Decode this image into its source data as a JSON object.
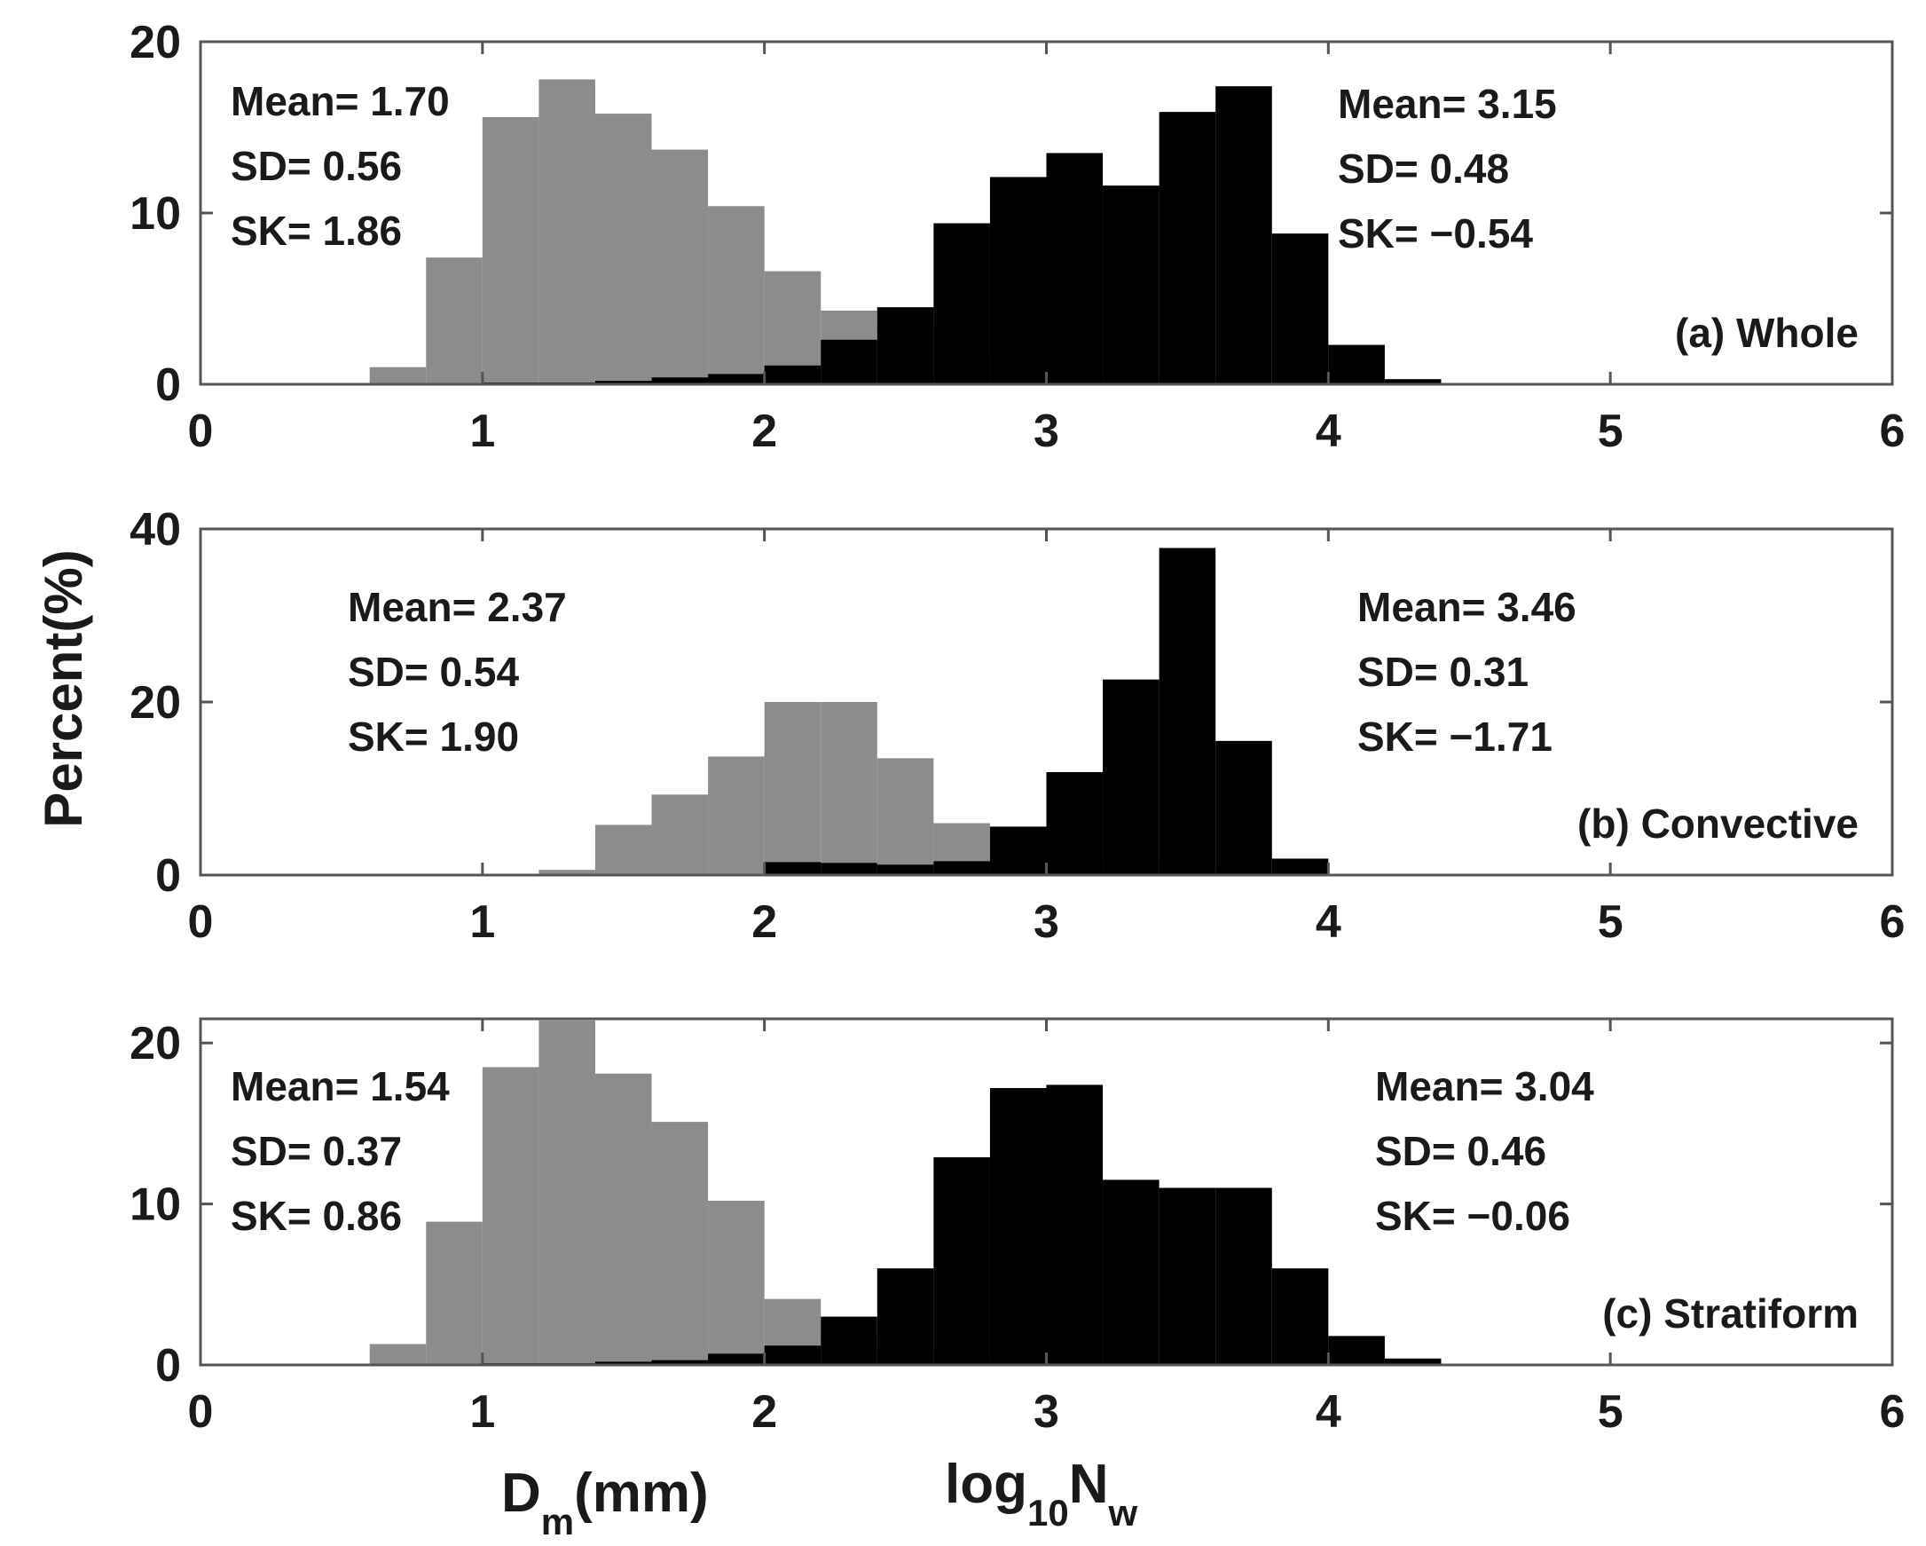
{
  "ylabel": "Percent(%)",
  "xlabel_dm": {
    "main": "D",
    "sub": "m",
    "rest": "(mm)"
  },
  "xlabel_nw": {
    "main": "log",
    "sub": "10",
    "rest": "N",
    "sub2": "w"
  },
  "colors": {
    "dm": "#8c8c8c",
    "nw": "#000000",
    "axis": "#555555"
  },
  "chart_data": [
    {
      "type": "bar",
      "title": "(a) Whole",
      "ylim": [
        0,
        20
      ],
      "yticks": [
        "0",
        "10",
        "20"
      ],
      "xlim": [
        0,
        6
      ],
      "xticks": [
        "0",
        "1",
        "2",
        "3",
        "4",
        "5",
        "6"
      ],
      "bin_width": 0.2,
      "series": [
        {
          "name": "Dm",
          "color": "#8c8c8c",
          "bins": [
            [
              0.7,
              1.0
            ],
            [
              0.9,
              7.4
            ],
            [
              1.1,
              15.6
            ],
            [
              1.3,
              17.8
            ],
            [
              1.5,
              15.8
            ],
            [
              1.7,
              13.7
            ],
            [
              1.9,
              10.4
            ],
            [
              2.1,
              6.6
            ],
            [
              2.3,
              4.3
            ],
            [
              2.5,
              3.2
            ],
            [
              2.7,
              1.7
            ],
            [
              2.9,
              0.9
            ],
            [
              3.1,
              0.7
            ],
            [
              3.3,
              0.5
            ],
            [
              3.5,
              0.4
            ],
            [
              3.7,
              0.3
            ],
            [
              3.9,
              0.1
            ]
          ]
        },
        {
          "name": "log10Nw",
          "color": "#000000",
          "bins": [
            [
              1.1,
              0.1
            ],
            [
              1.3,
              0.1
            ],
            [
              1.5,
              0.2
            ],
            [
              1.7,
              0.4
            ],
            [
              1.9,
              0.6
            ],
            [
              2.1,
              1.1
            ],
            [
              2.3,
              2.6
            ],
            [
              2.5,
              4.5
            ],
            [
              2.7,
              9.4
            ],
            [
              2.9,
              12.1
            ],
            [
              3.1,
              13.5
            ],
            [
              3.3,
              11.6
            ],
            [
              3.5,
              15.9
            ],
            [
              3.7,
              17.4
            ],
            [
              3.9,
              8.8
            ],
            [
              4.1,
              2.3
            ],
            [
              4.3,
              0.3
            ]
          ]
        }
      ],
      "annotations": {
        "dm": {
          "mean": "Mean= 1.70",
          "sd": "SD= 0.56",
          "sk": "SK= 1.86"
        },
        "nw": {
          "mean": "Mean= 3.15",
          "sd": "SD= 0.48",
          "sk": "SK= −0.54"
        }
      }
    },
    {
      "type": "bar",
      "title": "(b) Convective",
      "ylim": [
        0,
        40
      ],
      "yticks": [
        "0",
        "20",
        "40"
      ],
      "xlim": [
        0,
        6
      ],
      "xticks": [
        "0",
        "1",
        "2",
        "3",
        "4",
        "5",
        "6"
      ],
      "bin_width": 0.2,
      "series": [
        {
          "name": "Dm",
          "color": "#8c8c8c",
          "bins": [
            [
              1.1,
              0.1
            ],
            [
              1.3,
              0.6
            ],
            [
              1.5,
              5.8
            ],
            [
              1.7,
              9.3
            ],
            [
              1.9,
              13.7
            ],
            [
              2.1,
              20.0
            ],
            [
              2.3,
              20.0
            ],
            [
              2.5,
              13.5
            ],
            [
              2.7,
              6.0
            ],
            [
              2.9,
              4.0
            ],
            [
              3.1,
              2.7
            ],
            [
              3.3,
              1.4
            ],
            [
              3.5,
              1.3
            ],
            [
              3.7,
              0.3
            ]
          ]
        },
        {
          "name": "log10Nw",
          "color": "#000000",
          "bins": [
            [
              2.1,
              1.5
            ],
            [
              2.3,
              1.4
            ],
            [
              2.5,
              1.2
            ],
            [
              2.7,
              1.6
            ],
            [
              2.9,
              5.6
            ],
            [
              3.1,
              11.9
            ],
            [
              3.3,
              22.6
            ],
            [
              3.5,
              37.8
            ],
            [
              3.7,
              15.5
            ],
            [
              3.9,
              1.9
            ],
            [
              4.1,
              0.1
            ]
          ]
        }
      ],
      "annotations": {
        "dm": {
          "mean": "Mean= 2.37",
          "sd": "SD= 0.54",
          "sk": "SK= 1.90"
        },
        "nw": {
          "mean": "Mean= 3.46",
          "sd": "SD= 0.31",
          "sk": "SK= −1.71"
        }
      }
    },
    {
      "type": "bar",
      "title": "(c) Stratiform",
      "ylim": [
        0,
        21.5
      ],
      "yticks": [
        "0",
        "10",
        "20"
      ],
      "xlim": [
        0,
        6
      ],
      "xticks": [
        "0",
        "1",
        "2",
        "3",
        "4",
        "5",
        "6"
      ],
      "bin_width": 0.2,
      "series": [
        {
          "name": "Dm",
          "color": "#8c8c8c",
          "bins": [
            [
              0.7,
              1.3
            ],
            [
              0.9,
              8.9
            ],
            [
              1.1,
              18.5
            ],
            [
              1.3,
              21.4
            ],
            [
              1.5,
              18.1
            ],
            [
              1.7,
              15.1
            ],
            [
              1.9,
              10.2
            ],
            [
              2.1,
              4.1
            ],
            [
              2.3,
              1.9
            ],
            [
              2.5,
              0.9
            ],
            [
              2.7,
              0.4
            ],
            [
              2.9,
              0.1
            ]
          ]
        },
        {
          "name": "log10Nw",
          "color": "#000000",
          "bins": [
            [
              1.1,
              0.1
            ],
            [
              1.3,
              0.1
            ],
            [
              1.5,
              0.2
            ],
            [
              1.7,
              0.3
            ],
            [
              1.9,
              0.7
            ],
            [
              2.1,
              1.2
            ],
            [
              2.3,
              3.0
            ],
            [
              2.5,
              6.0
            ],
            [
              2.7,
              12.9
            ],
            [
              2.9,
              17.2
            ],
            [
              3.1,
              17.4
            ],
            [
              3.3,
              11.5
            ],
            [
              3.5,
              11.0
            ],
            [
              3.7,
              11.0
            ],
            [
              3.9,
              6.0
            ],
            [
              4.1,
              1.8
            ],
            [
              4.3,
              0.4
            ]
          ]
        }
      ],
      "annotations": {
        "dm": {
          "mean": "Mean= 1.54",
          "sd": "SD= 0.37",
          "sk": "SK= 0.86"
        },
        "nw": {
          "mean": "Mean= 3.04",
          "sd": "SD= 0.46",
          "sk": "SK= −0.06"
        }
      }
    }
  ]
}
